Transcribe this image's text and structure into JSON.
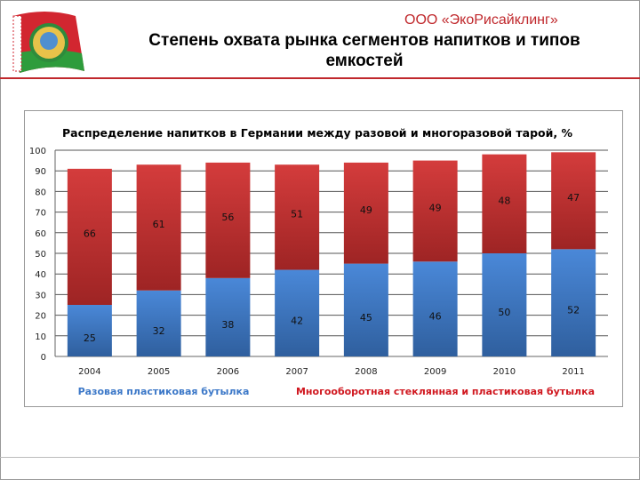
{
  "header": {
    "company": "ООО «ЭкоРисайклинг»",
    "title": "Степень охвата рынка сегментов напитков и типов емкостей",
    "logo": "Belarus coat of arms with flag"
  },
  "chart_data": {
    "type": "bar",
    "stacked": true,
    "title": "Распределение напитков в Германии между разовой и многоразовой тарой, %",
    "categories": [
      "2004",
      "2005",
      "2006",
      "2007",
      "2008",
      "2009",
      "2010",
      "2011"
    ],
    "series": [
      {
        "name": "Разовая пластиковая бутылка",
        "values": [
          25,
          32,
          38,
          42,
          45,
          46,
          50,
          52
        ],
        "color": "#3c78c8"
      },
      {
        "name": "Многооборотная стеклянная и пластиковая бутылка",
        "values": [
          66,
          61,
          56,
          51,
          49,
          49,
          48,
          47
        ],
        "color": "#c83434"
      }
    ],
    "yticks": [
      "0",
      "10",
      "20",
      "30",
      "40",
      "50",
      "60",
      "70",
      "80",
      "90",
      "100"
    ],
    "ylim": [
      0,
      100
    ],
    "grid": true,
    "legend": "bottom",
    "legend_colors": {
      "blue": "#3c78c8",
      "red": "#d0171f"
    }
  }
}
